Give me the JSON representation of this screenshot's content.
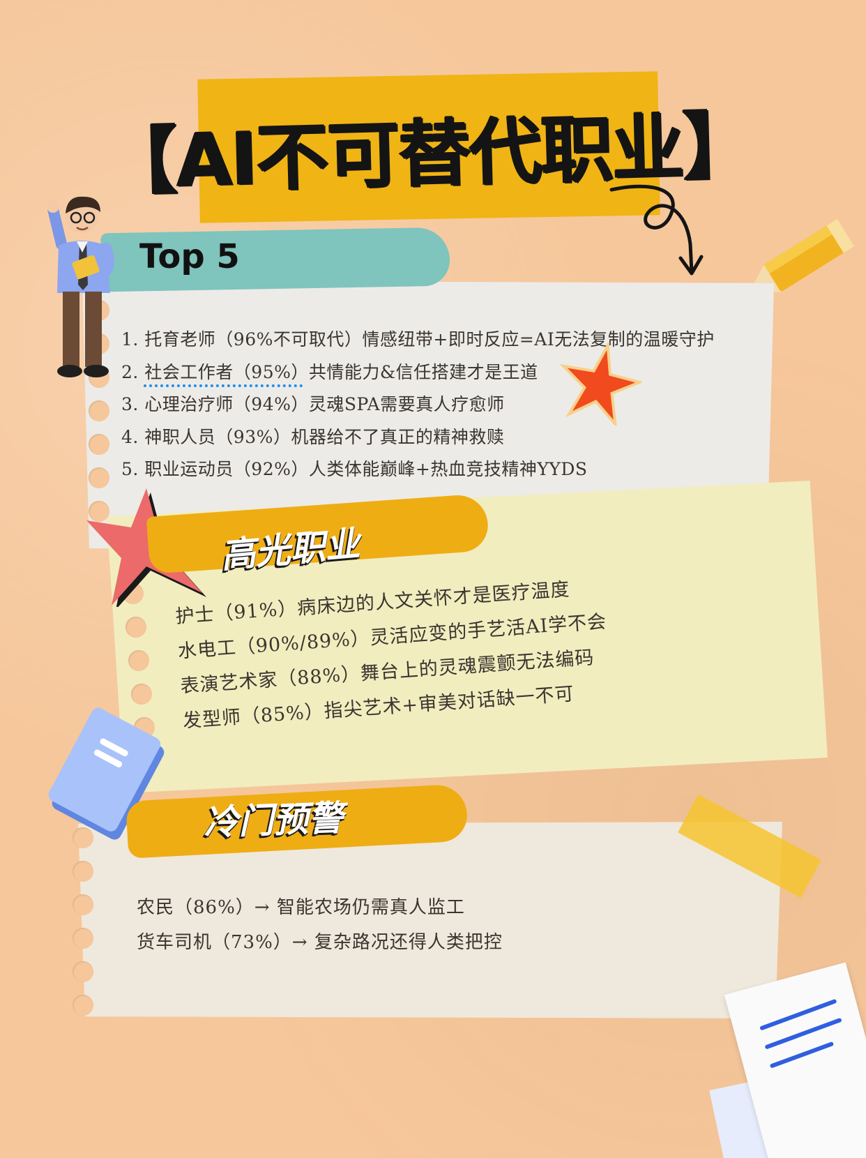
{
  "title": "【AI不可替代职业】",
  "sections": {
    "top5": {
      "heading": "Top 5",
      "items": [
        "1. 托育老师（96%不可取代）情感纽带+即时反应=AI无法复制的温暖守护",
        "2. 社会工作者（95%）共情能力&信任搭建才是王道",
        "3. 心理治疗师（94%）灵魂SPA需要真人疗愈师",
        "4. 神职人员（93%）机器给不了真正的精神救赎",
        "5. 职业运动员（92%）人类体能巅峰+热血竞技精神YYDS"
      ]
    },
    "highlight": {
      "heading": "高光职业",
      "items": [
        "护士（91%）病床边的人文关怀才是医疗温度",
        "水电工（90%/89%）灵活应变的手艺活AI学不会",
        "表演艺术家（88%）舞台上的灵魂震颤无法编码",
        "发型师（85%）指尖艺术+审美对话缺一不可"
      ]
    },
    "warning": {
      "heading": "冷门预警",
      "items": [
        "农民（86%）→ 智能农场仍需真人监工",
        "货车司机（73%）→ 复杂路况还得人类把控"
      ]
    }
  },
  "colors": {
    "background": "#f6c79b",
    "title_highlight": "#f0b414",
    "banner_teal": "#7fc4bd",
    "banner_yellow": "#efad14",
    "star_red": "#f04a1e",
    "star_pink": "#ec6a6a",
    "underline_blue": "#1f8fe8"
  },
  "decorations": [
    "cartoon-businessman-icon",
    "pencil-icon",
    "curly-arrow-icon",
    "star-icon",
    "burst-star-icon",
    "book-icon",
    "paper-sheet-icon",
    "tape-strip"
  ]
}
